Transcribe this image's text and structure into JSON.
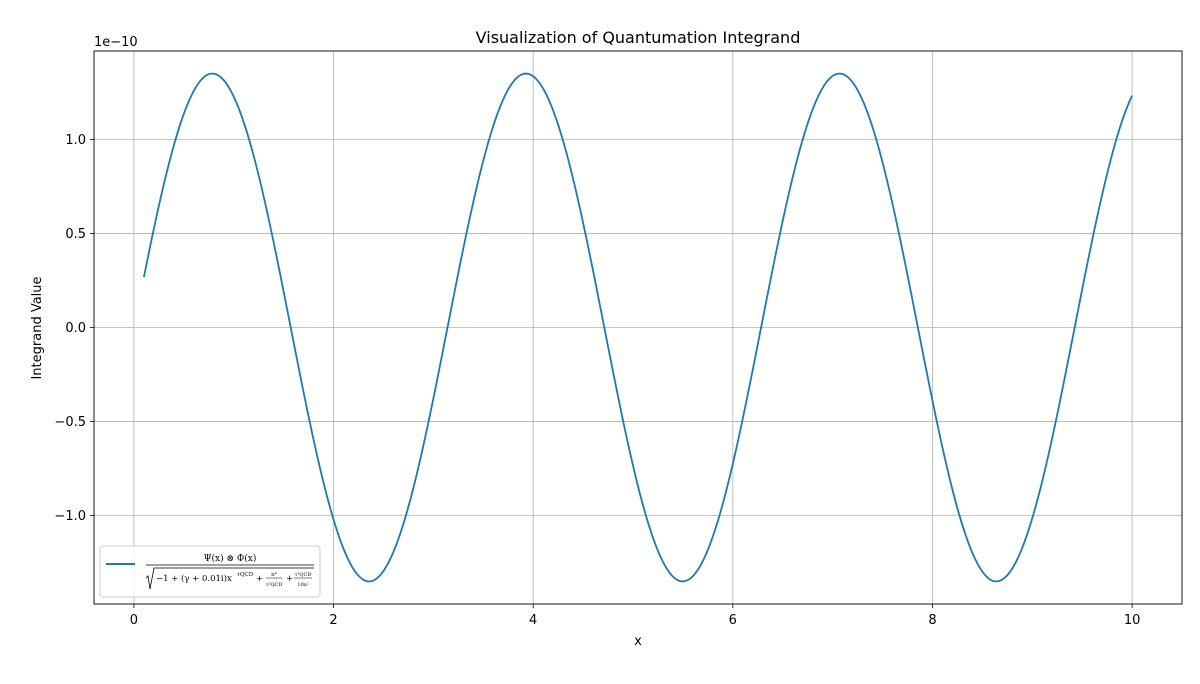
{
  "chart_data": {
    "type": "line",
    "title": "Visualization of Quantumation Integrand",
    "xlabel": "x",
    "ylabel": "Integrand Value",
    "y_offset_text": "1e−10",
    "y_scale": 1e-10,
    "xlim": [
      -0.4,
      10.5
    ],
    "ylim": [
      -1.47,
      1.47
    ],
    "x_ticks": [
      0,
      2,
      4,
      6,
      8,
      10
    ],
    "x_tick_labels": [
      "0",
      "2",
      "4",
      "6",
      "8",
      "10"
    ],
    "y_ticks": [
      -1.0,
      -0.5,
      0.0,
      0.5,
      1.0
    ],
    "y_tick_labels": [
      "−1.0",
      "−0.5",
      "0.0",
      "0.5",
      "1.0"
    ],
    "grid": true,
    "legend_position": "lower-left",
    "series": [
      {
        "name": "Ψ(x) ⊗ Φ(x) / √(−1 + (γ + 0.01i)x^τQCD + π²/τ²QCD + τ³QCD/10x²)",
        "color": "#1f77b4",
        "description_of_shape": "sinusoid with amplitude 1.35 (×1e−10) and period π, sampled from x = 0.1 to 10",
        "x_start": 0.1,
        "x_end": 10,
        "amplitude": 1.35,
        "frequency": 2,
        "phase": 0
      }
    ],
    "legend_math": {
      "numerator": "Ψ(x) ⊗ Φ(x)",
      "denominator_pre": "−1 + (γ + 0.01i)x",
      "denominator_exp1": "τQCD",
      "frac1_num": "π²",
      "frac1_den": "τ²QCD",
      "frac2_num": "τ³QCD",
      "frac2_den": "10x²",
      "plus": "+"
    }
  }
}
